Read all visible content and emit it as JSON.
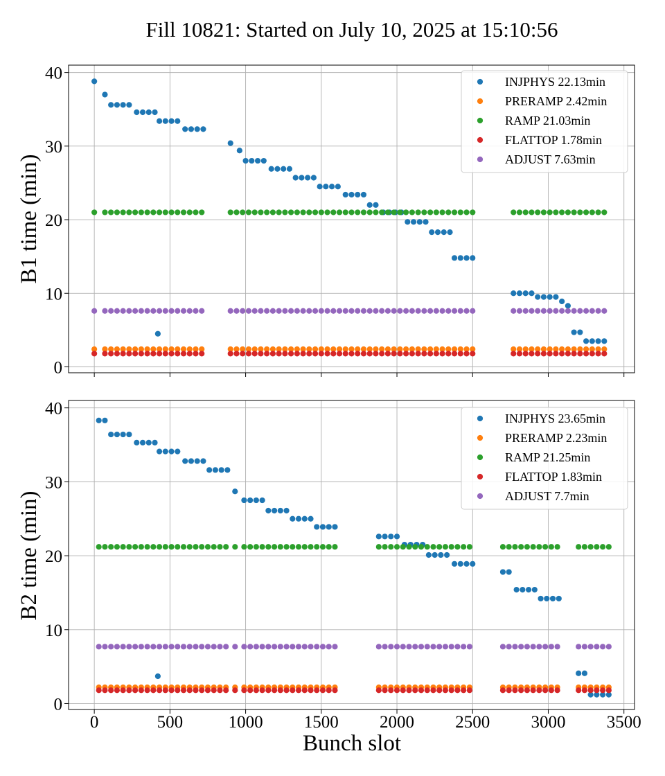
{
  "chart_data": {
    "type": "scatter",
    "title": "Fill 10821: Started on July 10, 2025 at 15:10:56",
    "xlabel": "Bunch slot",
    "shared_x": true,
    "grid": true,
    "legend_position": "upper right",
    "marker_colors": {
      "INJPHYS": "#1f77b4",
      "PRERAMP": "#ff7f0e",
      "RAMP": "#2ca02c",
      "FLATTOP": "#d62728",
      "ADJUST": "#9467bd"
    },
    "panels": [
      {
        "id": "b1",
        "ylabel": "B1 time (min)",
        "xlim": [
          -170,
          3570
        ],
        "ylim": [
          -0.8,
          41
        ],
        "xticks": [
          "0",
          "500",
          "1000",
          "1500",
          "2000",
          "2500",
          "3000",
          "3500"
        ],
        "yticks": [
          "0",
          "10",
          "20",
          "30",
          "40"
        ],
        "show_xtick_labels": false,
        "series": [
          {
            "key": "INJPHYS",
            "name": "INJPHYS 22.13min",
            "points": [
              [
                0,
                38.8
              ],
              [
                70,
                37
              ],
              [
                110,
                35.6
              ],
              [
                150,
                35.6
              ],
              [
                190,
                35.6
              ],
              [
                230,
                35.6
              ],
              [
                280,
                34.6
              ],
              [
                320,
                34.6
              ],
              [
                360,
                34.6
              ],
              [
                400,
                34.6
              ],
              [
                420,
                4.5
              ],
              [
                430,
                33.4
              ],
              [
                470,
                33.4
              ],
              [
                510,
                33.4
              ],
              [
                550,
                33.4
              ],
              [
                600,
                32.3
              ],
              [
                640,
                32.3
              ],
              [
                680,
                32.3
              ],
              [
                720,
                32.3
              ],
              [
                900,
                30.4
              ],
              [
                960,
                29.4
              ],
              [
                1000,
                28
              ],
              [
                1040,
                28
              ],
              [
                1080,
                28
              ],
              [
                1120,
                28
              ],
              [
                1170,
                26.9
              ],
              [
                1210,
                26.9
              ],
              [
                1250,
                26.9
              ],
              [
                1290,
                26.9
              ],
              [
                1330,
                25.7
              ],
              [
                1370,
                25.7
              ],
              [
                1410,
                25.7
              ],
              [
                1450,
                25.7
              ],
              [
                1490,
                24.5
              ],
              [
                1530,
                24.5
              ],
              [
                1570,
                24.5
              ],
              [
                1610,
                24.5
              ],
              [
                1660,
                23.4
              ],
              [
                1700,
                23.4
              ],
              [
                1740,
                23.4
              ],
              [
                1780,
                23.4
              ],
              [
                1820,
                22
              ],
              [
                1860,
                22
              ],
              [
                1910,
                21
              ],
              [
                1950,
                21
              ],
              [
                1990,
                21
              ],
              [
                2030,
                21
              ],
              [
                2070,
                19.7
              ],
              [
                2110,
                19.7
              ],
              [
                2150,
                19.7
              ],
              [
                2190,
                19.7
              ],
              [
                2230,
                18.3
              ],
              [
                2270,
                18.3
              ],
              [
                2310,
                18.3
              ],
              [
                2350,
                18.3
              ],
              [
                2380,
                14.8
              ],
              [
                2420,
                14.8
              ],
              [
                2460,
                14.8
              ],
              [
                2500,
                14.8
              ],
              [
                2770,
                10
              ],
              [
                2810,
                10
              ],
              [
                2850,
                10
              ],
              [
                2890,
                10
              ],
              [
                2930,
                9.5
              ],
              [
                2970,
                9.5
              ],
              [
                3010,
                9.5
              ],
              [
                3050,
                9.5
              ],
              [
                3090,
                8.9
              ],
              [
                3130,
                8.3
              ],
              [
                3170,
                4.7
              ],
              [
                3210,
                4.7
              ],
              [
                3250,
                3.5
              ],
              [
                3290,
                3.5
              ],
              [
                3330,
                3.5
              ],
              [
                3370,
                3.5
              ]
            ]
          },
          {
            "key": "PRERAMP",
            "name": "PRERAMP 2.42min",
            "x_runs": [
              [
                0,
                0,
                40
              ],
              [
                70,
                720,
                40
              ],
              [
                900,
                2500,
                40
              ],
              [
                2770,
                3370,
                40
              ]
            ],
            "y": 2.4
          },
          {
            "key": "RAMP",
            "name": "RAMP 21.03min",
            "x_runs": [
              [
                0,
                0,
                40
              ],
              [
                70,
                720,
                40
              ],
              [
                900,
                2500,
                40
              ],
              [
                2770,
                3370,
                40
              ]
            ],
            "y": 21
          },
          {
            "key": "FLATTOP",
            "name": "FLATTOP 1.78min",
            "x_runs": [
              [
                0,
                0,
                40
              ],
              [
                70,
                720,
                40
              ],
              [
                900,
                2500,
                40
              ],
              [
                2770,
                3370,
                40
              ]
            ],
            "y": 1.8
          },
          {
            "key": "ADJUST",
            "name": "ADJUST 7.63min",
            "x_runs": [
              [
                0,
                0,
                40
              ],
              [
                70,
                720,
                40
              ],
              [
                900,
                2500,
                40
              ],
              [
                2770,
                3370,
                40
              ]
            ],
            "y": 7.6
          }
        ]
      },
      {
        "id": "b2",
        "ylabel": "B2 time (min)",
        "xlim": [
          -170,
          3570
        ],
        "ylim": [
          -0.8,
          41
        ],
        "xticks": [
          "0",
          "500",
          "1000",
          "1500",
          "2000",
          "2500",
          "3000",
          "3500"
        ],
        "yticks": [
          "0",
          "10",
          "20",
          "30",
          "40"
        ],
        "show_xtick_labels": true,
        "series": [
          {
            "key": "INJPHYS",
            "name": "INJPHYS 23.65min",
            "points": [
              [
                30,
                38.3
              ],
              [
                70,
                38.3
              ],
              [
                110,
                36.4
              ],
              [
                150,
                36.4
              ],
              [
                190,
                36.4
              ],
              [
                230,
                36.4
              ],
              [
                280,
                35.3
              ],
              [
                320,
                35.3
              ],
              [
                360,
                35.3
              ],
              [
                400,
                35.3
              ],
              [
                420,
                3.7
              ],
              [
                430,
                34.1
              ],
              [
                470,
                34.1
              ],
              [
                510,
                34.1
              ],
              [
                550,
                34.1
              ],
              [
                600,
                32.8
              ],
              [
                640,
                32.8
              ],
              [
                680,
                32.8
              ],
              [
                720,
                32.8
              ],
              [
                760,
                31.6
              ],
              [
                800,
                31.6
              ],
              [
                840,
                31.6
              ],
              [
                880,
                31.6
              ],
              [
                930,
                28.7
              ],
              [
                990,
                27.5
              ],
              [
                1030,
                27.5
              ],
              [
                1070,
                27.5
              ],
              [
                1110,
                27.5
              ],
              [
                1150,
                26.1
              ],
              [
                1190,
                26.1
              ],
              [
                1230,
                26.1
              ],
              [
                1270,
                26.1
              ],
              [
                1310,
                25
              ],
              [
                1350,
                25
              ],
              [
                1390,
                25
              ],
              [
                1430,
                25
              ],
              [
                1470,
                23.9
              ],
              [
                1510,
                23.9
              ],
              [
                1550,
                23.9
              ],
              [
                1590,
                23.9
              ],
              [
                1880,
                22.6
              ],
              [
                1920,
                22.6
              ],
              [
                1960,
                22.6
              ],
              [
                2000,
                22.6
              ],
              [
                2050,
                21.5
              ],
              [
                2090,
                21.5
              ],
              [
                2130,
                21.5
              ],
              [
                2170,
                21.5
              ],
              [
                2210,
                20.1
              ],
              [
                2250,
                20.1
              ],
              [
                2290,
                20.1
              ],
              [
                2330,
                20.1
              ],
              [
                2380,
                18.9
              ],
              [
                2420,
                18.9
              ],
              [
                2460,
                18.9
              ],
              [
                2500,
                18.9
              ],
              [
                2700,
                17.8
              ],
              [
                2740,
                17.8
              ],
              [
                2790,
                15.4
              ],
              [
                2830,
                15.4
              ],
              [
                2870,
                15.4
              ],
              [
                2910,
                15.4
              ],
              [
                2950,
                14.2
              ],
              [
                2990,
                14.2
              ],
              [
                3030,
                14.2
              ],
              [
                3070,
                14.2
              ],
              [
                3200,
                4.1
              ],
              [
                3240,
                4.1
              ],
              [
                3280,
                1.2
              ],
              [
                3320,
                1.2
              ],
              [
                3360,
                1.2
              ],
              [
                3400,
                1.2
              ]
            ]
          },
          {
            "key": "PRERAMP",
            "name": "PRERAMP 2.23min",
            "x_runs": [
              [
                30,
                880,
                40
              ],
              [
                930,
                930,
                40
              ],
              [
                990,
                1590,
                40
              ],
              [
                1880,
                2500,
                40
              ],
              [
                2700,
                3070,
                40
              ],
              [
                3200,
                3400,
                40
              ]
            ],
            "y": 2.2
          },
          {
            "key": "RAMP",
            "name": "RAMP 21.25min",
            "x_runs": [
              [
                30,
                880,
                40
              ],
              [
                930,
                930,
                40
              ],
              [
                990,
                1590,
                40
              ],
              [
                1880,
                2500,
                40
              ],
              [
                2700,
                3070,
                40
              ],
              [
                3200,
                3400,
                40
              ]
            ],
            "y": 21.2
          },
          {
            "key": "FLATTOP",
            "name": "FLATTOP 1.83min",
            "x_runs": [
              [
                30,
                880,
                40
              ],
              [
                930,
                930,
                40
              ],
              [
                990,
                1590,
                40
              ],
              [
                1880,
                2500,
                40
              ],
              [
                2700,
                3070,
                40
              ],
              [
                3200,
                3400,
                40
              ]
            ],
            "y": 1.8
          },
          {
            "key": "ADJUST",
            "name": "ADJUST 7.7min",
            "x_runs": [
              [
                30,
                880,
                40
              ],
              [
                930,
                930,
                40
              ],
              [
                990,
                1590,
                40
              ],
              [
                1880,
                2500,
                40
              ],
              [
                2700,
                3070,
                40
              ],
              [
                3200,
                3400,
                40
              ]
            ],
            "y": 7.7
          }
        ]
      }
    ]
  }
}
